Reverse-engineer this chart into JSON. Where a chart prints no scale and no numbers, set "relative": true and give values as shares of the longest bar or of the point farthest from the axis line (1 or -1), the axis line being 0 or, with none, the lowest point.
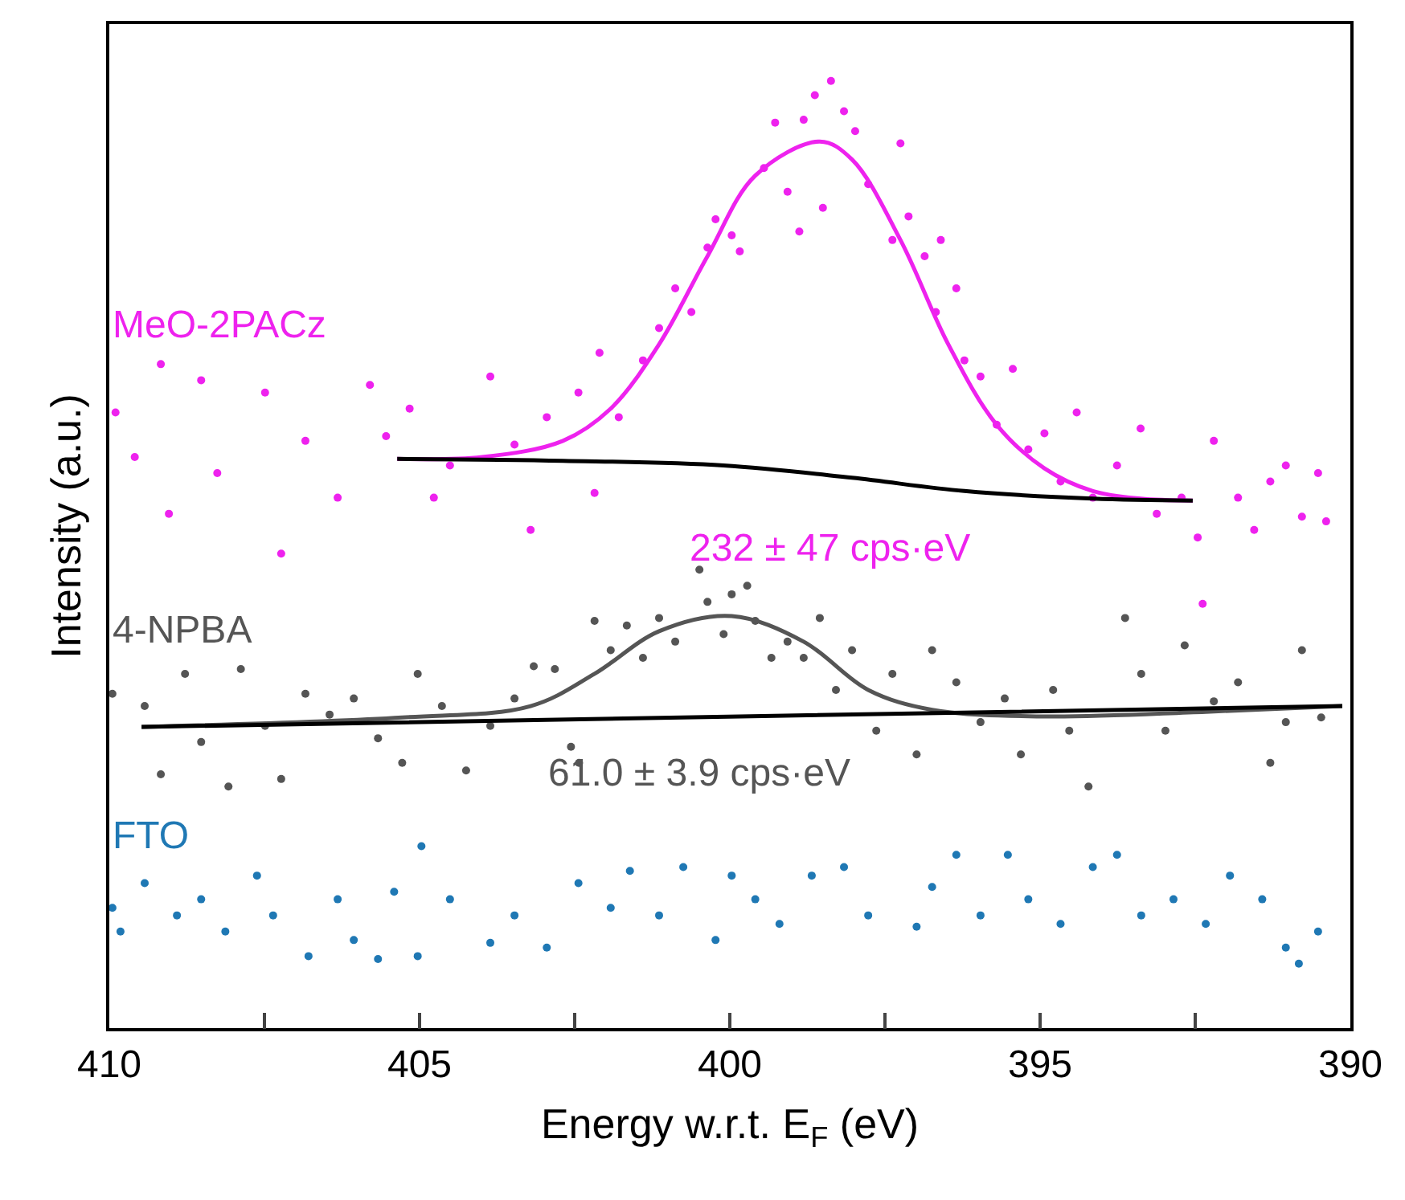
{
  "chart_data": {
    "type": "scatter",
    "relative": true,
    "xlabel": "Energy w.r.t. E$_{F}$ (eV)",
    "ylabel": "Intensity (a.u.)",
    "xlim": [
      410,
      390
    ],
    "xticks": [
      410,
      {
        "value": 407.5,
        "label": null
      },
      405,
      {
        "value": 402.5,
        "label": null
      },
      400,
      {
        "value": 397.5,
        "label": null
      },
      395,
      {
        "value": 392.5,
        "label": null
      },
      390
    ],
    "legend": false,
    "annotations": [
      "232 ± 47 cps·eV",
      "61.0 ± 3.9 cps·eV"
    ],
    "series": [
      {
        "name": "MeO-2PACz",
        "marker": "circle",
        "color": "#ee22ee",
        "x": [
          409.9,
          409.59,
          409.17,
          409.04,
          408.52,
          408.26,
          407.49,
          407.23,
          406.84,
          406.32,
          405.8,
          405.54,
          405.16,
          404.77,
          404.51,
          403.86,
          403.47,
          403.21,
          402.95,
          402.44,
          402.18,
          402.1,
          401.79,
          401.4,
          401.14,
          400.88,
          400.62,
          400.36,
          400.23,
          399.97,
          399.84,
          399.45,
          399.27,
          399.07,
          398.88,
          398.81,
          398.63,
          398.5,
          398.37,
          398.16,
          397.98,
          397.77,
          397.38,
          397.25,
          397.12,
          396.86,
          396.68,
          396.6,
          396.35,
          396.22,
          395.96,
          395.7,
          395.44,
          395.19,
          394.93,
          394.67,
          394.41,
          394.15,
          393.76,
          393.38,
          393.12,
          392.72,
          392.46,
          392.38,
          392.2,
          391.81,
          391.55,
          391.29,
          391.04,
          390.78,
          390.52,
          390.39
        ],
        "values": [
          0.65,
          0.603,
          0.701,
          0.543,
          0.684,
          0.586,
          0.671,
          0.501,
          0.62,
          0.56,
          0.679,
          0.625,
          0.654,
          0.56,
          0.594,
          0.688,
          0.616,
          0.526,
          0.645,
          0.671,
          0.565,
          0.713,
          0.645,
          0.705,
          0.739,
          0.781,
          0.756,
          0.824,
          0.854,
          0.837,
          0.82,
          0.908,
          0.956,
          0.883,
          0.841,
          0.959,
          0.985,
          0.866,
          1.0,
          0.968,
          0.947,
          0.891,
          0.832,
          0.934,
          0.857,
          0.815,
          0.756,
          0.832,
          0.781,
          0.705,
          0.688,
          0.637,
          0.696,
          0.611,
          0.628,
          0.577,
          0.65,
          0.56,
          0.594,
          0.633,
          0.543,
          0.56,
          0.518,
          0.448,
          0.62,
          0.56,
          0.526,
          0.577,
          0.594,
          0.54,
          0.586,
          0.535
        ]
      },
      {
        "type": "line",
        "color": "#ee22ee",
        "x": [
          405.36,
          403.99,
          402.69,
          401.92,
          401.14,
          400.36,
          399.59,
          398.55,
          398.03,
          397.25,
          396.48,
          395.7,
          394.93,
          394.15,
          393.38,
          392.54
        ],
        "values": [
          0.601,
          0.603,
          0.62,
          0.654,
          0.722,
          0.815,
          0.9,
          0.936,
          0.917,
          0.832,
          0.722,
          0.637,
          0.591,
          0.567,
          0.559,
          0.557
        ]
      },
      {
        "type": "line",
        "color": "#000000",
        "x": [
          405.36,
          402.69,
          400.1,
          398.03,
          396.22,
          394.15,
          392.54
        ],
        "values": [
          0.601,
          0.599,
          0.594,
          0.581,
          0.567,
          0.559,
          0.557
        ]
      },
      {
        "name": "4-NPBA",
        "marker": "circle",
        "color": "#555555",
        "x": [
          409.95,
          409.43,
          409.17,
          408.78,
          408.52,
          408.08,
          407.88,
          407.49,
          407.23,
          406.84,
          406.45,
          406.06,
          405.67,
          405.28,
          405.03,
          404.64,
          404.25,
          403.86,
          403.47,
          403.16,
          402.82,
          402.56,
          402.43,
          402.18,
          401.92,
          401.66,
          401.4,
          401.14,
          400.88,
          400.49,
          400.36,
          400.1,
          399.97,
          399.72,
          399.59,
          399.33,
          399.07,
          398.81,
          398.55,
          398.29,
          398.03,
          397.64,
          397.38,
          396.99,
          396.74,
          396.35,
          395.96,
          395.57,
          395.31,
          394.79,
          394.53,
          394.22,
          393.63,
          393.37,
          392.98,
          392.67,
          392.2,
          391.81,
          391.29,
          391.04,
          390.78,
          390.47
        ],
        "values": [
          0.353,
          0.34,
          0.268,
          0.374,
          0.302,
          0.255,
          0.379,
          0.319,
          0.263,
          0.353,
          0.331,
          0.348,
          0.306,
          0.28,
          0.374,
          0.34,
          0.272,
          0.319,
          0.348,
          0.382,
          0.379,
          0.297,
          0.28,
          0.43,
          0.399,
          0.425,
          0.391,
          0.433,
          0.408,
          0.484,
          0.45,
          0.416,
          0.458,
          0.467,
          0.43,
          0.391,
          0.408,
          0.391,
          0.433,
          0.357,
          0.399,
          0.314,
          0.374,
          0.289,
          0.399,
          0.365,
          0.323,
          0.348,
          0.289,
          0.357,
          0.314,
          0.255,
          0.433,
          0.374,
          0.314,
          0.404,
          0.345,
          0.365,
          0.28,
          0.323,
          0.399,
          0.328
        ]
      },
      {
        "type": "line",
        "color": "#555555",
        "x": [
          409.48,
          405.28,
          403.21,
          402.18,
          401.14,
          399.97,
          398.81,
          397.77,
          396.74,
          394.93,
          392.33,
          390.13
        ],
        "values": [
          0.318,
          0.328,
          0.34,
          0.374,
          0.419,
          0.435,
          0.408,
          0.357,
          0.336,
          0.329,
          0.334,
          0.34
        ]
      },
      {
        "type": "line",
        "color": "#000000",
        "x": [
          409.48,
          399.84,
          390.13
        ],
        "values": [
          0.318,
          0.329,
          0.34
        ]
      },
      {
        "name": "FTO",
        "marker": "circle",
        "color": "#1f78b4",
        "x": [
          409.95,
          409.82,
          409.43,
          408.91,
          408.52,
          408.13,
          407.62,
          407.36,
          406.79,
          406.32,
          406.06,
          405.67,
          405.41,
          405.03,
          404.97,
          404.51,
          403.86,
          403.47,
          402.95,
          402.44,
          401.92,
          401.61,
          401.14,
          400.75,
          400.23,
          399.97,
          399.59,
          399.2,
          398.68,
          398.16,
          397.77,
          396.99,
          396.74,
          396.35,
          395.96,
          395.52,
          395.19,
          394.67,
          394.15,
          393.76,
          393.37,
          392.85,
          392.33,
          391.94,
          391.42,
          391.04,
          390.83,
          390.52
        ],
        "values": [
          0.127,
          0.102,
          0.153,
          0.119,
          0.136,
          0.102,
          0.161,
          0.119,
          0.076,
          0.136,
          0.093,
          0.073,
          0.144,
          0.076,
          0.192,
          0.136,
          0.09,
          0.119,
          0.085,
          0.153,
          0.127,
          0.166,
          0.119,
          0.17,
          0.093,
          0.161,
          0.136,
          0.11,
          0.161,
          0.17,
          0.119,
          0.107,
          0.149,
          0.183,
          0.119,
          0.183,
          0.136,
          0.11,
          0.17,
          0.183,
          0.119,
          0.136,
          0.11,
          0.161,
          0.136,
          0.085,
          0.068,
          0.102
        ]
      }
    ]
  }
}
